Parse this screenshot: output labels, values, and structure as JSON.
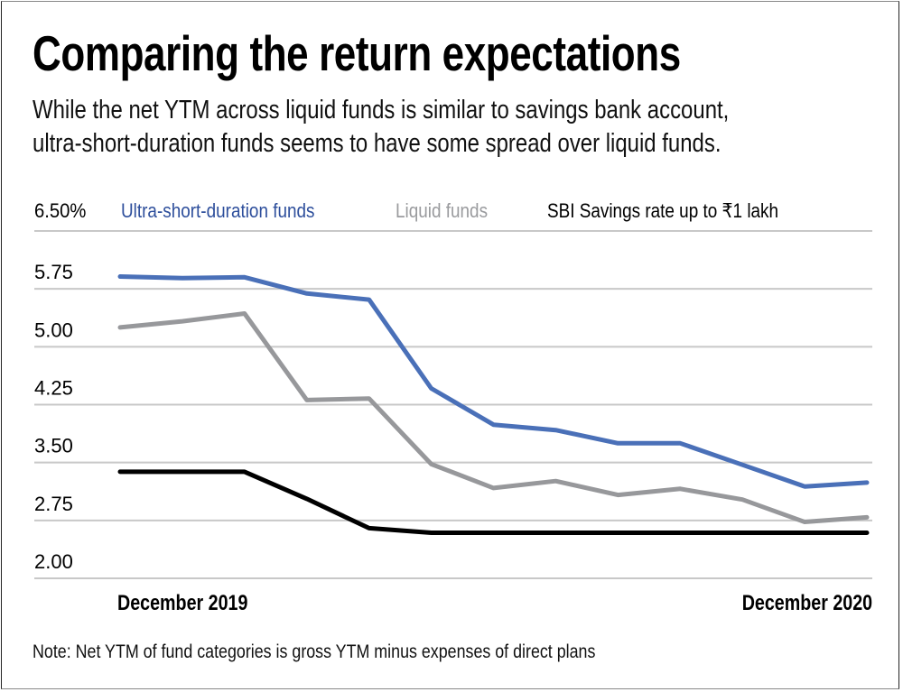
{
  "header": {
    "title": "Comparing the return expectations",
    "subtitle_line1": "While the net YTM across liquid funds is similar to savings bank account,",
    "subtitle_line2": "ultra-short-duration funds seems to have some spread over liquid funds."
  },
  "note": "Note: Net YTM of fund categories is gross YTM minus expenses of direct plans",
  "colors": {
    "ultra_short": "#4A70B8",
    "ultra_short_label": "#2E4F9C",
    "liquid": "#97989B",
    "sbi": "#000000",
    "grid": "#C8C8C8"
  },
  "chart_data": {
    "type": "line",
    "title": "Comparing the return expectations",
    "xlabel": "",
    "ylabel": "%",
    "unit_label": "6.50%",
    "ylim": [
      2.0,
      6.5
    ],
    "yticks": [
      6.5,
      5.75,
      5.0,
      4.25,
      3.5,
      2.75,
      2.0
    ],
    "ytick_labels": [
      "6.50%",
      "5.75",
      "5.00",
      "4.25",
      "3.50",
      "2.75",
      "2.00"
    ],
    "x_tick_labels": [
      {
        "index": 0,
        "label": "December 2019"
      },
      {
        "index": 12,
        "label": "December 2020"
      }
    ],
    "x": [
      "Dec 2019",
      "Jan 2020",
      "Feb 2020",
      "Mar 2020",
      "Apr 2020",
      "May 2020",
      "Jun 2020",
      "Jul 2020",
      "Aug 2020",
      "Sep 2020",
      "Oct 2020",
      "Nov 2020",
      "Dec 2020"
    ],
    "grid": true,
    "legend_position": "top",
    "series": [
      {
        "name": "Ultra-short-duration funds",
        "color": "#4A70B8",
        "values": [
          5.91,
          5.89,
          5.9,
          5.69,
          5.61,
          4.46,
          3.99,
          3.92,
          3.75,
          3.75,
          3.47,
          3.19,
          3.24
        ]
      },
      {
        "name": "Liquid funds",
        "color": "#97989B",
        "values": [
          5.25,
          5.33,
          5.43,
          4.31,
          4.33,
          3.48,
          3.17,
          3.26,
          3.08,
          3.16,
          3.02,
          2.73,
          2.79
        ]
      },
      {
        "name": "SBI Savings rate up to ₹1 lakh",
        "color": "#000000",
        "values": [
          3.38,
          3.38,
          3.38,
          3.03,
          2.65,
          2.59,
          2.59,
          2.59,
          2.59,
          2.59,
          2.59,
          2.59,
          2.59
        ]
      }
    ]
  }
}
